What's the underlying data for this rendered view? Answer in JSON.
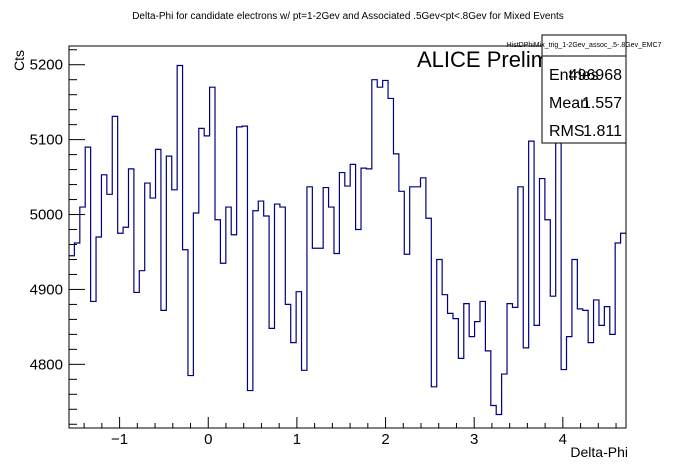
{
  "chart_data": {
    "type": "step",
    "title": "Delta-Phi for candidate electrons w/ pt=1-2Gev and Associated .5Gev<pt<.8Gev for Mixed Events",
    "xlabel": "Delta-Phi",
    "ylabel": "Cts",
    "annotation": "ALICE Preliminary",
    "xlim": [
      -1.5708,
      4.7124
    ],
    "ylim": [
      4715,
      5225
    ],
    "x_ticks": [
      -1,
      0,
      1,
      2,
      3,
      4
    ],
    "x_tick_labels": [
      "−1",
      "0",
      "1",
      "2",
      "3",
      "4"
    ],
    "y_ticks": [
      4800,
      4900,
      5000,
      5100,
      5200
    ],
    "y_tick_labels": [
      "4800",
      "4900",
      "5000",
      "5100",
      "5200"
    ],
    "series": [
      {
        "color": "#000080",
        "values": [
          4945,
          4962,
          5010,
          5090,
          4884,
          4970,
          5053,
          5027,
          5131,
          4975,
          4983,
          5061,
          4896,
          4925,
          5042,
          5022,
          5087,
          4872,
          5078,
          5033,
          5199,
          4953,
          4785,
          5002,
          5115,
          5105,
          5170,
          4993,
          4935,
          5010,
          4973,
          5117,
          5118,
          4765,
          5005,
          5018,
          4998,
          4848,
          5014,
          5010,
          4880,
          4829,
          4897,
          4792,
          5037,
          4955,
          4955,
          5036,
          5010,
          4948,
          5056,
          5038,
          5067,
          4980,
          5062,
          5061,
          5180,
          5170,
          5179,
          5155,
          5081,
          5031,
          4947,
          5037,
          5037,
          5049,
          4995,
          4770,
          4940,
          4893,
          4868,
          4861,
          4808,
          4881,
          4837,
          4857,
          4884,
          4818,
          4745,
          4733,
          4787,
          4881,
          4876,
          5037,
          4822,
          5098,
          4852,
          5048,
          4993,
          4891,
          5106,
          4793,
          4837,
          4940,
          4874,
          4872,
          4829,
          4886,
          4852,
          4877,
          4840,
          4962,
          4975
        ],
        "uniform_bins": true
      }
    ],
    "stats": {
      "name": "HistDPhiMix_trig_1-2Gev_assoc_.5-.8Gev_EMC7",
      "entries_label": "Entries",
      "entries_value": "496968",
      "mean_label": "Mean",
      "mean_value": "1.557",
      "rms_label": "RMS",
      "rms_value": "1.811"
    },
    "grid": false,
    "legend": "none"
  }
}
